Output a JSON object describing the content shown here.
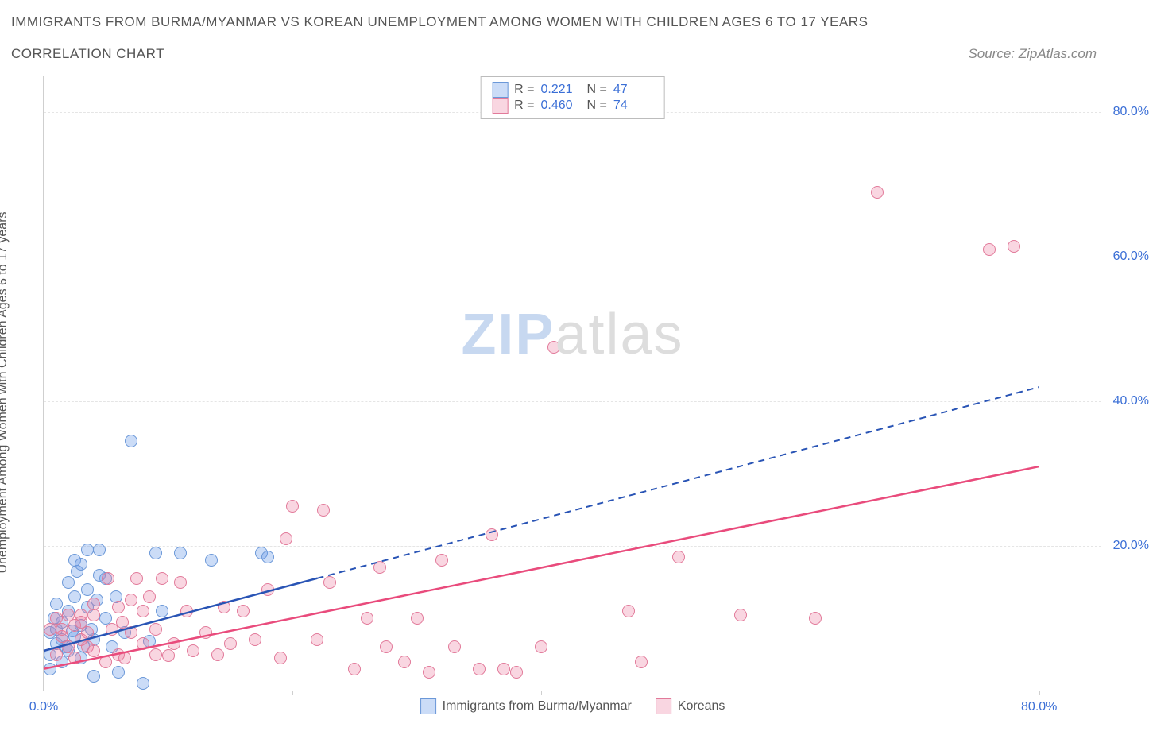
{
  "header": {
    "title": "IMMIGRANTS FROM BURMA/MYANMAR VS KOREAN UNEMPLOYMENT AMONG WOMEN WITH CHILDREN AGES 6 TO 17 YEARS",
    "subtitle": "CORRELATION CHART",
    "source": "Source: ZipAtlas.com"
  },
  "chart": {
    "type": "scatter",
    "ylabel": "Unemployment Among Women with Children Ages 6 to 17 years",
    "xlim": [
      0,
      85
    ],
    "ylim": [
      0,
      85
    ],
    "xtick_positions": [
      0,
      20,
      40,
      60,
      80
    ],
    "xtick_labels": [
      "0.0%",
      "",
      "",
      "",
      "80.0%"
    ],
    "ytick_positions": [
      20,
      40,
      60,
      80
    ],
    "ytick_labels": [
      "20.0%",
      "40.0%",
      "60.0%",
      "80.0%"
    ],
    "grid_color": "#e5e5e5",
    "axis_color": "#cfcfcf",
    "tick_label_color": "#3b6fd6",
    "background_color": "#ffffff",
    "series": [
      {
        "name": "Immigrants from Burma/Myanmar",
        "color_fill": "rgba(105,155,232,0.35)",
        "color_stroke": "#6b98d8",
        "trend_color": "#2954b5",
        "trend_style": "dashed-after",
        "trend_solid_until_x": 22,
        "trend_start": [
          0,
          5.5
        ],
        "trend_end": [
          80,
          42
        ],
        "R": "0.221",
        "N": "47",
        "points": [
          [
            0.5,
            8
          ],
          [
            0.5,
            5
          ],
          [
            0.5,
            3
          ],
          [
            0.8,
            10
          ],
          [
            1,
            6.5
          ],
          [
            1,
            8.5
          ],
          [
            1,
            12
          ],
          [
            1.5,
            4
          ],
          [
            1.5,
            7
          ],
          [
            1.5,
            9.5
          ],
          [
            1.8,
            6
          ],
          [
            2,
            11
          ],
          [
            2,
            5.5
          ],
          [
            2,
            15
          ],
          [
            2.3,
            8.2
          ],
          [
            2.5,
            18
          ],
          [
            2.5,
            13
          ],
          [
            2.5,
            7.5
          ],
          [
            2.7,
            16.5
          ],
          [
            3,
            9
          ],
          [
            3,
            4.5
          ],
          [
            3,
            17.5
          ],
          [
            3.2,
            6.2
          ],
          [
            3.5,
            11.5
          ],
          [
            3.5,
            14
          ],
          [
            3.5,
            19.5
          ],
          [
            3.8,
            8.5
          ],
          [
            4,
            2
          ],
          [
            4,
            7
          ],
          [
            4.3,
            12.5
          ],
          [
            4.5,
            16
          ],
          [
            4.5,
            19.5
          ],
          [
            5,
            10
          ],
          [
            5,
            15.5
          ],
          [
            5.5,
            6
          ],
          [
            5.8,
            13
          ],
          [
            6,
            2.5
          ],
          [
            6.5,
            8
          ],
          [
            7,
            34.5
          ],
          [
            8,
            1
          ],
          [
            8.5,
            6.8
          ],
          [
            9,
            19
          ],
          [
            9.5,
            11
          ],
          [
            11,
            19
          ],
          [
            13.5,
            18
          ],
          [
            17.5,
            19
          ],
          [
            18,
            18.5
          ]
        ]
      },
      {
        "name": "Koreans",
        "color_fill": "rgba(235,120,155,0.30)",
        "color_stroke": "#e27a9a",
        "trend_color": "#e94b7c",
        "trend_style": "solid",
        "trend_start": [
          0,
          3
        ],
        "trend_end": [
          80,
          31
        ],
        "R": "0.460",
        "N": "74",
        "points": [
          [
            0.5,
            8.5
          ],
          [
            1,
            5
          ],
          [
            1,
            10
          ],
          [
            1.5,
            7.5
          ],
          [
            1.5,
            8.5
          ],
          [
            2,
            6
          ],
          [
            2,
            10.5
          ],
          [
            2.5,
            4.5
          ],
          [
            2.5,
            9
          ],
          [
            3,
            7
          ],
          [
            3,
            9.5
          ],
          [
            3,
            10.5
          ],
          [
            3.5,
            6
          ],
          [
            3.5,
            8
          ],
          [
            4,
            5.5
          ],
          [
            4,
            10.5
          ],
          [
            4,
            12
          ],
          [
            5,
            4
          ],
          [
            5.2,
            15.5
          ],
          [
            5.5,
            8.5
          ],
          [
            6,
            5
          ],
          [
            6,
            11.5
          ],
          [
            6.3,
            9.5
          ],
          [
            6.5,
            4.5
          ],
          [
            7,
            8
          ],
          [
            7,
            12.5
          ],
          [
            7.5,
            15.5
          ],
          [
            8,
            6.5
          ],
          [
            8,
            11
          ],
          [
            8.5,
            13
          ],
          [
            9,
            5
          ],
          [
            9,
            8.5
          ],
          [
            9.5,
            15.5
          ],
          [
            10,
            4.8
          ],
          [
            10.5,
            6.5
          ],
          [
            11,
            15
          ],
          [
            11.5,
            11
          ],
          [
            12,
            5.5
          ],
          [
            13,
            8
          ],
          [
            14,
            5
          ],
          [
            14.5,
            11.5
          ],
          [
            15,
            6.5
          ],
          [
            16,
            11
          ],
          [
            17,
            7
          ],
          [
            18,
            14
          ],
          [
            19,
            4.5
          ],
          [
            19.5,
            21
          ],
          [
            20,
            25.5
          ],
          [
            22,
            7
          ],
          [
            22.5,
            25
          ],
          [
            23,
            15
          ],
          [
            25,
            3
          ],
          [
            26,
            10
          ],
          [
            27,
            17
          ],
          [
            27.5,
            6
          ],
          [
            29,
            4
          ],
          [
            30,
            10
          ],
          [
            31,
            2.5
          ],
          [
            32,
            18
          ],
          [
            33,
            6
          ],
          [
            35,
            3
          ],
          [
            36,
            21.5
          ],
          [
            37,
            3
          ],
          [
            38,
            2.5
          ],
          [
            40,
            6
          ],
          [
            41,
            47.5
          ],
          [
            47,
            11
          ],
          [
            48,
            4
          ],
          [
            51,
            18.5
          ],
          [
            56,
            10.5
          ],
          [
            62,
            10
          ],
          [
            67,
            69
          ],
          [
            76,
            61
          ],
          [
            78,
            61.5
          ]
        ]
      }
    ],
    "watermark": {
      "zip": "ZIP",
      "atlas": "atlas"
    }
  },
  "legend": {
    "series1_label": "Immigrants from Burma/Myanmar",
    "series2_label": "Koreans"
  }
}
